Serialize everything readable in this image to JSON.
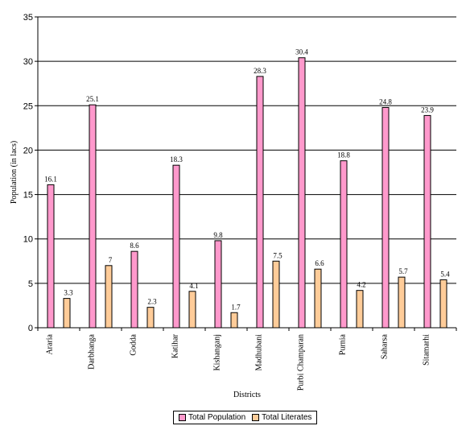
{
  "chart_data": {
    "type": "bar",
    "categories": [
      "Araria",
      "Darbhanga",
      "Godda",
      "Katihar",
      "Kishanganj",
      "Madhubani",
      "Purbi Champaran",
      "Purnia",
      "Saharsa",
      "Sitamarhi"
    ],
    "series": [
      {
        "name": "Total Population",
        "values": [
          16.1,
          25.1,
          8.6,
          18.3,
          9.8,
          28.3,
          30.4,
          18.8,
          24.8,
          23.9
        ],
        "color": "#ff99cc"
      },
      {
        "name": "Total Literates",
        "values": [
          3.3,
          7,
          2.3,
          4.1,
          1.7,
          7.5,
          6.6,
          4.2,
          5.7,
          5.4
        ],
        "color": "#ffcc99"
      }
    ],
    "data_labels": [
      [
        "16.1",
        "25.1",
        "8.6",
        "18.3",
        "9.8",
        "28.3",
        "30.4",
        "18.8",
        "24.8",
        "23.9"
      ],
      [
        "3.3",
        "7",
        "2.3",
        "4.1",
        "1.7",
        "7.5",
        "6.6",
        "4.2",
        "5.7",
        "5.4"
      ]
    ],
    "yticks": [
      "0",
      "5",
      "10",
      "15",
      "20",
      "25",
      "30",
      "35"
    ],
    "xlabel": "Districts",
    "ylabel": "Population (in lacs)",
    "ylim": [
      0,
      35
    ],
    "grid": true,
    "legend_position": "bottom"
  }
}
